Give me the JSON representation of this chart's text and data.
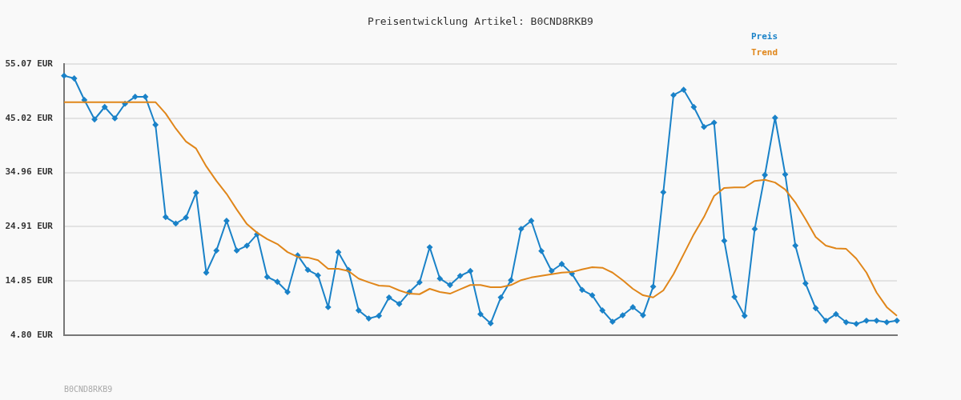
{
  "chart_data": {
    "type": "line",
    "title": "Preisentwicklung Artikel: B0CND8RKB9",
    "categories": [
      null,
      null,
      null,
      null,
      null,
      null,
      null,
      null,
      null,
      null,
      null,
      null,
      null,
      null,
      null,
      null,
      null,
      null,
      null,
      null,
      null,
      null,
      null,
      null,
      null,
      null,
      null,
      null,
      null,
      null,
      null,
      null,
      null,
      null,
      null,
      null,
      null,
      null,
      null,
      null,
      null,
      null,
      null,
      null,
      null,
      null,
      null,
      null,
      null,
      null,
      null,
      null,
      null,
      null,
      null,
      null,
      null,
      null,
      null,
      null,
      null,
      null,
      null,
      null,
      null,
      null,
      null,
      null,
      null,
      null,
      null,
      null,
      null,
      null,
      null,
      null,
      null,
      null,
      null,
      null,
      null,
      null,
      null
    ],
    "series": [
      {
        "name": "Preis",
        "color": "#1a82c8",
        "marker": "diamond",
        "values": [
          52.9,
          52.4,
          48.4,
          44.8,
          47.1,
          45.0,
          47.7,
          49.0,
          49.0,
          43.8,
          26.7,
          25.5,
          26.6,
          31.2,
          16.4,
          20.5,
          26.0,
          20.5,
          21.4,
          23.5,
          15.6,
          14.7,
          12.8,
          19.6,
          16.9,
          15.9,
          10.0,
          20.2,
          16.9,
          9.4,
          7.9,
          8.4,
          11.8,
          10.6,
          12.8,
          14.6,
          21.1,
          15.3,
          14.1,
          15.8,
          16.7,
          8.7,
          7.0,
          11.8,
          15.0,
          24.5,
          26.0,
          20.4,
          16.7,
          18.0,
          16.2,
          13.2,
          12.2,
          9.4,
          7.3,
          8.5,
          10.0,
          8.5,
          13.8,
          31.3,
          49.3,
          50.3,
          47.1,
          43.4,
          44.2,
          22.3,
          11.9,
          8.4,
          24.5,
          34.5,
          45.1,
          34.6,
          21.4,
          14.4,
          9.8,
          7.5,
          8.7,
          7.2,
          6.9,
          7.5,
          7.5,
          7.2,
          7.5
        ]
      },
      {
        "name": "Trend",
        "color": "#e0861a",
        "marker": "none",
        "values": [
          48.0,
          48.0,
          48.0,
          48.0,
          48.0,
          48.0,
          48.0,
          48.0,
          48.0,
          48.0,
          45.9,
          43.1,
          40.7,
          39.4,
          36.1,
          33.4,
          31.0,
          28.1,
          25.4,
          23.8,
          22.6,
          21.7,
          20.2,
          19.3,
          19.2,
          18.7,
          17.1,
          17.1,
          16.7,
          15.3,
          14.6,
          14.0,
          13.9,
          13.1,
          12.5,
          12.4,
          13.4,
          12.8,
          12.5,
          13.3,
          14.1,
          14.1,
          13.7,
          13.7,
          14.1,
          15.0,
          15.5,
          15.8,
          16.1,
          16.4,
          16.5,
          17.0,
          17.4,
          17.3,
          16.4,
          15.0,
          13.4,
          12.2,
          11.8,
          13.1,
          16.1,
          19.8,
          23.5,
          26.7,
          30.6,
          32.1,
          32.2,
          32.2,
          33.4,
          33.6,
          33.1,
          31.8,
          29.4,
          26.3,
          23.0,
          21.4,
          20.9,
          20.8,
          19.0,
          16.4,
          12.7,
          10.0,
          8.4
        ]
      }
    ],
    "ylim": [
      4.8,
      55.07
    ],
    "yticks": [
      {
        "value": 4.8,
        "label": "4.80 EUR"
      },
      {
        "value": 14.85,
        "label": "14.85 EUR"
      },
      {
        "value": 24.91,
        "label": "24.91 EUR"
      },
      {
        "value": 34.96,
        "label": "34.96 EUR"
      },
      {
        "value": 45.02,
        "label": "45.02 EUR"
      },
      {
        "value": 55.07,
        "label": "55.07 EUR"
      }
    ],
    "grid": "y",
    "legend": "top right",
    "tick_labels": "y",
    "annotations": [
      "B0CND8RKB9"
    ]
  }
}
